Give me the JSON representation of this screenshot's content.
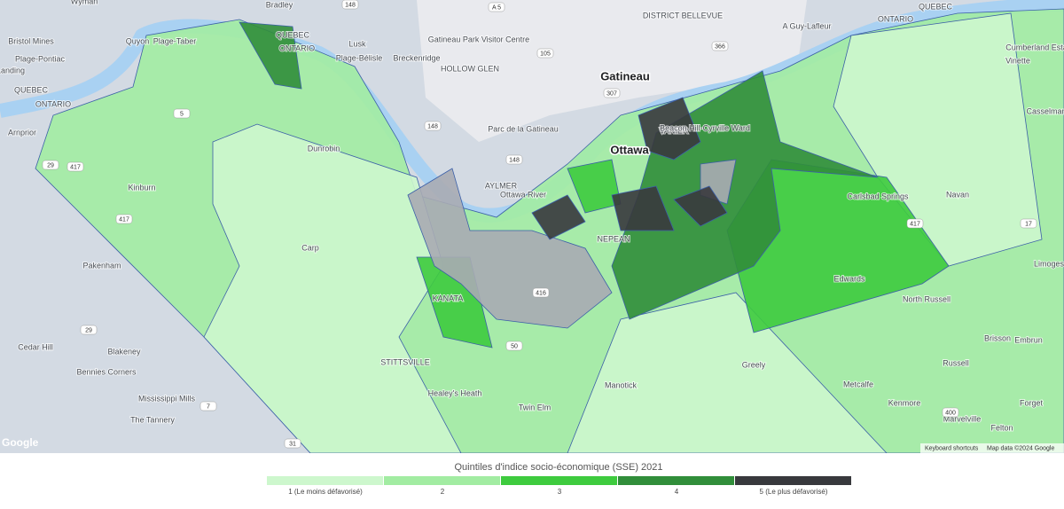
{
  "map": {
    "labels": [
      "Wyman",
      "Quyon",
      "Plage-Taber",
      "Bradley",
      "Bristol Mines",
      "Plage-Pontiac",
      "Landing",
      "QUEBEC",
      "ONTARIO",
      "Arnprior",
      "Lusk",
      "Plage-Bélisle",
      "Breckenridge",
      "Gatineau Park Visitor Centre",
      "Gatineau",
      "Parc de la Gatineau",
      "Ottawa",
      "AYLMER",
      "Ottawa River",
      "Kinburn",
      "Dunrobin",
      "Pakenham",
      "KANATA",
      "NEPEAN",
      "STITTSVILLE",
      "Healey's Heath",
      "Twin Elm",
      "Cedar Hill",
      "Blakeney",
      "Bennies Corners",
      "Mississippi Mills",
      "The Tannery",
      "Vinette",
      "North Russell",
      "Edwards",
      "Brisson",
      "Embrun",
      "Russell",
      "Marvelville",
      "Forget",
      "Felton",
      "Limoges",
      "Cumberland Estates",
      "Navan",
      "Greely",
      "Metcalfe",
      "Manotick",
      "VANIER",
      "Beacon Hill-Cyrville Ward",
      "Kenmore",
      "Carp",
      "Carlsbad Springs",
      "Casselman",
      "DISTRICT BELLEVUE",
      "HOLLOW GLEN",
      "QUEBEC",
      "ONTARIO",
      "QUEBEC",
      "ONTARIO",
      "A Guy-Lafleur"
    ],
    "road_shields": [
      "148",
      "148",
      "105",
      "307",
      "366",
      "50",
      "148",
      "417",
      "417",
      "5",
      "29",
      "29",
      "7",
      "417",
      "416",
      "17",
      "31",
      "400",
      "A 5"
    ]
  },
  "legend": {
    "title": "Quintiles d'indice socio-économique (SSE) 2021",
    "items": [
      {
        "label": "1 (Le moins défavorisé)",
        "color": "#cdf7cd"
      },
      {
        "label": "2",
        "color": "#a2eca2"
      },
      {
        "label": "3",
        "color": "#3ecb3e"
      },
      {
        "label": "4",
        "color": "#318e3a"
      },
      {
        "label": "5 (Le plus défavorisé)",
        "color": "#38393d"
      }
    ]
  },
  "attribution": {
    "shortcuts": "Keyboard shortcuts",
    "data": "Map data ©2024 Google",
    "logo": "Google"
  }
}
